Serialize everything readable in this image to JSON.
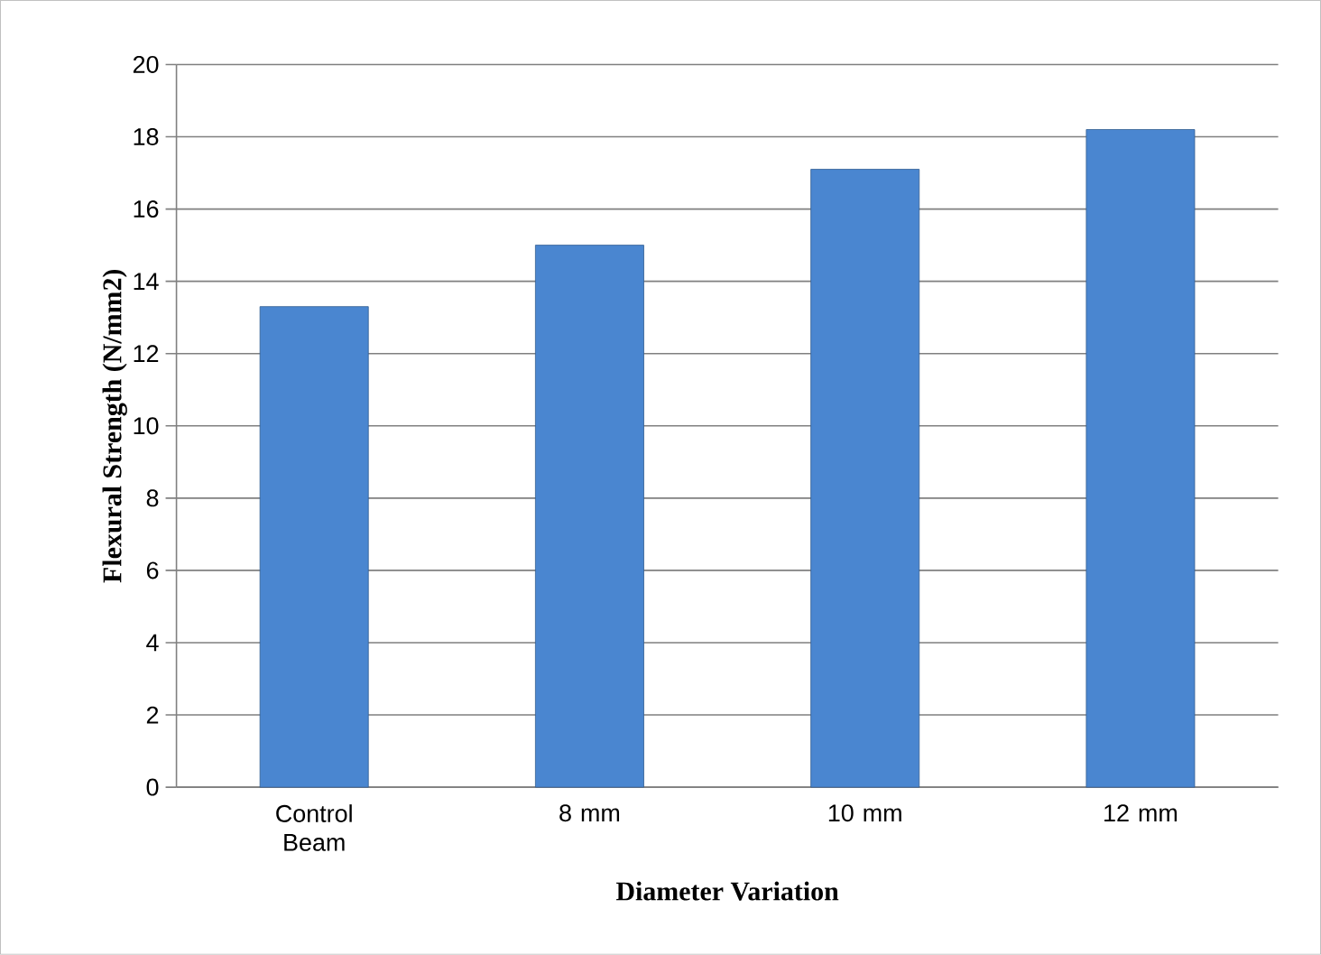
{
  "chart_data": {
    "type": "bar",
    "categories": [
      "Control Beam",
      "8 mm",
      "10 mm",
      "12 mm"
    ],
    "values": [
      13.3,
      15.0,
      17.1,
      18.2
    ],
    "color": "#4a86d0",
    "ylim": [
      0,
      20
    ],
    "yticks": [
      0,
      2,
      4,
      6,
      8,
      10,
      12,
      14,
      16,
      18,
      20
    ],
    "grid": "y",
    "xlabel": "Diameter Variation",
    "ylabel": "Flexural Strength (N/mm2)"
  }
}
